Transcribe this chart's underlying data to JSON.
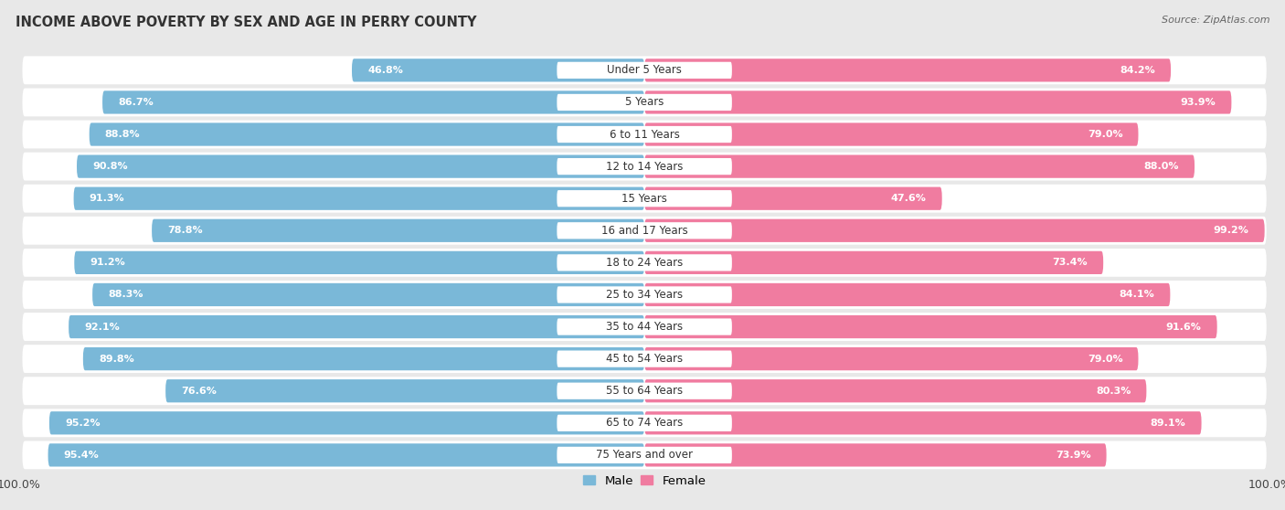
{
  "title": "INCOME ABOVE POVERTY BY SEX AND AGE IN PERRY COUNTY",
  "source": "Source: ZipAtlas.com",
  "categories": [
    "Under 5 Years",
    "5 Years",
    "6 to 11 Years",
    "12 to 14 Years",
    "15 Years",
    "16 and 17 Years",
    "18 to 24 Years",
    "25 to 34 Years",
    "35 to 44 Years",
    "45 to 54 Years",
    "55 to 64 Years",
    "65 to 74 Years",
    "75 Years and over"
  ],
  "male": [
    46.8,
    86.7,
    88.8,
    90.8,
    91.3,
    78.8,
    91.2,
    88.3,
    92.1,
    89.8,
    76.6,
    95.2,
    95.4
  ],
  "female": [
    84.2,
    93.9,
    79.0,
    88.0,
    47.6,
    99.2,
    73.4,
    84.1,
    91.6,
    79.0,
    80.3,
    89.1,
    73.9
  ],
  "male_color": "#7ab8d8",
  "female_color": "#f07ca0",
  "male_label": "Male",
  "female_label": "Female",
  "background_color": "#e8e8e8",
  "row_bg_color": "#f0f0f0",
  "title_fontsize": 10.5,
  "source_fontsize": 8,
  "label_fontsize": 8.5,
  "value_fontsize": 8.0,
  "tick_fontsize": 9,
  "x_axis_label_left": "100.0%",
  "x_axis_label_right": "100.0%"
}
